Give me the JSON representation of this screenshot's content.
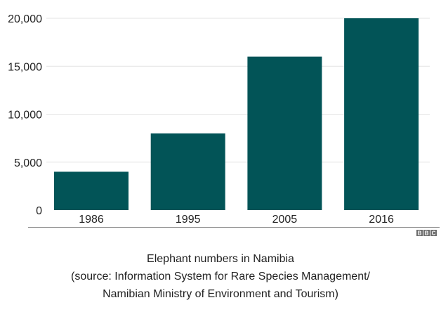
{
  "chart_data": {
    "type": "bar",
    "categories": [
      "1986",
      "1995",
      "2005",
      "2016"
    ],
    "values": [
      4000,
      8000,
      16000,
      20000
    ],
    "title": "",
    "xlabel": "",
    "ylabel": "",
    "ylim": [
      0,
      20000
    ],
    "yticks": [
      0,
      5000,
      10000,
      15000,
      20000
    ],
    "ytick_labels": [
      "0",
      "5,000",
      "10,000",
      "15,000",
      "20,000"
    ],
    "grid": "horizontal",
    "legend": "none",
    "colors": {
      "bar": "#025457",
      "grid": "#e3e3e3",
      "baseline": "#8a8a8a",
      "text": "#222222"
    }
  },
  "logo": {
    "letters": [
      "B",
      "B",
      "C"
    ]
  },
  "caption": {
    "line1": "Elephant numbers in Namibia",
    "line2": "(source: Information System for Rare Species Management/",
    "line3": "Namibian Ministry of Environment and Tourism)"
  }
}
